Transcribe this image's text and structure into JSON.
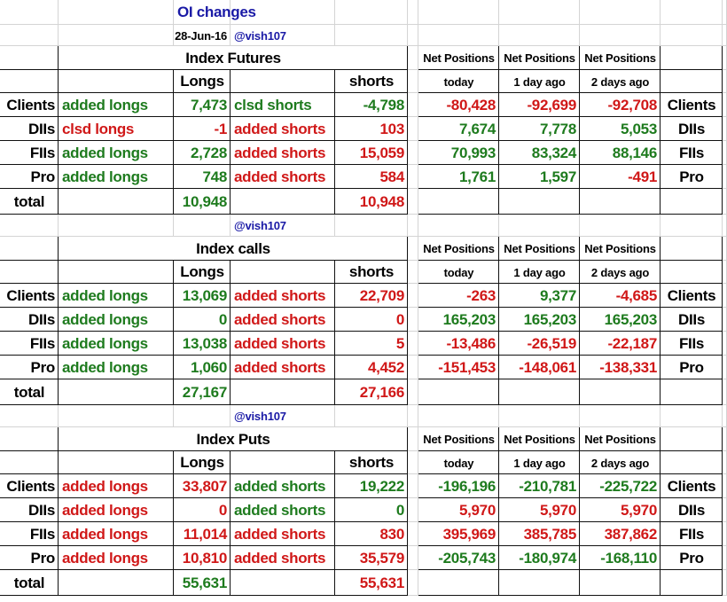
{
  "title": "OI changes",
  "date": "28-Jun-16",
  "colors": {
    "title": "#1a1aa6",
    "handle": "#1a1aa6",
    "long_total": "#1e7b1e",
    "short_total": "#d01818"
  },
  "sections": [
    {
      "handle": "@vish107",
      "title": "Index Futures",
      "longs_header": "Longs",
      "shorts_header": "shorts",
      "net_headers": [
        "Net Positions",
        "Net Positions",
        "Net Positions"
      ],
      "net_subheaders": [
        "today",
        "1 day ago",
        "2 days ago"
      ],
      "rows": [
        {
          "name": "Clients",
          "long_action": "added longs",
          "long": "7,473",
          "short_action": "clsd shorts",
          "short": "-4,798",
          "net": [
            "-80,428",
            "-92,699",
            "-92,708"
          ],
          "name_right": "Clients",
          "long_color": "#1e7b1e",
          "short_color": "#1e7b1e",
          "net_colors": [
            "#d01818",
            "#d01818",
            "#d01818"
          ]
        },
        {
          "name": "DIIs",
          "long_action": "clsd longs",
          "long": "-1",
          "short_action": "added shorts",
          "short": "103",
          "net": [
            "7,674",
            "7,778",
            "5,053"
          ],
          "name_right": "DIIs",
          "long_color": "#d01818",
          "short_color": "#d01818",
          "net_colors": [
            "#1e7b1e",
            "#1e7b1e",
            "#1e7b1e"
          ]
        },
        {
          "name": "FIIs",
          "long_action": "added longs",
          "long": "2,728",
          "short_action": "added shorts",
          "short": "15,059",
          "net": [
            "70,993",
            "83,324",
            "88,146"
          ],
          "name_right": "FIIs",
          "long_color": "#1e7b1e",
          "short_color": "#d01818",
          "net_colors": [
            "#1e7b1e",
            "#1e7b1e",
            "#1e7b1e"
          ]
        },
        {
          "name": "Pro",
          "long_action": "added longs",
          "long": "748",
          "short_action": "added shorts",
          "short": "584",
          "net": [
            "1,761",
            "1,597",
            "-491"
          ],
          "name_right": "Pro",
          "long_color": "#1e7b1e",
          "short_color": "#d01818",
          "net_colors": [
            "#1e7b1e",
            "#1e7b1e",
            "#d01818"
          ]
        }
      ],
      "total": {
        "label": "total",
        "longs": "10,948",
        "shorts": "10,948"
      }
    },
    {
      "handle": "@vish107",
      "title": "Index calls",
      "longs_header": "Longs",
      "shorts_header": "shorts",
      "net_headers": [
        "Net Positions",
        "Net Positions",
        "Net Positions"
      ],
      "net_subheaders": [
        "today",
        "1 day ago",
        "2 days ago"
      ],
      "rows": [
        {
          "name": "Clients",
          "long_action": "added longs",
          "long": "13,069",
          "short_action": "added shorts",
          "short": "22,709",
          "net": [
            "-263",
            "9,377",
            "-4,685"
          ],
          "name_right": "Clients",
          "long_color": "#1e7b1e",
          "short_color": "#d01818",
          "net_colors": [
            "#d01818",
            "#1e7b1e",
            "#d01818"
          ]
        },
        {
          "name": "DIIs",
          "long_action": "added longs",
          "long": "0",
          "short_action": "added shorts",
          "short": "0",
          "net": [
            "165,203",
            "165,203",
            "165,203"
          ],
          "name_right": "DIIs",
          "long_color": "#1e7b1e",
          "short_color": "#d01818",
          "net_colors": [
            "#1e7b1e",
            "#1e7b1e",
            "#1e7b1e"
          ]
        },
        {
          "name": "FIIs",
          "long_action": "added longs",
          "long": "13,038",
          "short_action": "added shorts",
          "short": "5",
          "net": [
            "-13,486",
            "-26,519",
            "-22,187"
          ],
          "name_right": "FIIs",
          "long_color": "#1e7b1e",
          "short_color": "#d01818",
          "net_colors": [
            "#d01818",
            "#d01818",
            "#d01818"
          ]
        },
        {
          "name": "Pro",
          "long_action": "added longs",
          "long": "1,060",
          "short_action": "added shorts",
          "short": "4,452",
          "net": [
            "-151,453",
            "-148,061",
            "-138,331"
          ],
          "name_right": "Pro",
          "long_color": "#1e7b1e",
          "short_color": "#d01818",
          "net_colors": [
            "#d01818",
            "#d01818",
            "#d01818"
          ]
        }
      ],
      "total": {
        "label": "total",
        "longs": "27,167",
        "shorts": "27,166"
      }
    },
    {
      "handle": "@vish107",
      "title": "Index Puts",
      "longs_header": "Longs",
      "shorts_header": "shorts",
      "net_headers": [
        "Net Positions",
        "Net Positions",
        "Net Positions"
      ],
      "net_subheaders": [
        "today",
        "1 day ago",
        "2 days ago"
      ],
      "rows": [
        {
          "name": "Clients",
          "long_action": "added longs",
          "long": "33,807",
          "short_action": "added shorts",
          "short": "19,222",
          "net": [
            "-196,196",
            "-210,781",
            "-225,722"
          ],
          "name_right": "Clients",
          "long_color": "#d01818",
          "short_color": "#1e7b1e",
          "net_colors": [
            "#1e7b1e",
            "#1e7b1e",
            "#1e7b1e"
          ]
        },
        {
          "name": "DIIs",
          "long_action": "added longs",
          "long": "0",
          "short_action": "added shorts",
          "short": "0",
          "net": [
            "5,970",
            "5,970",
            "5,970"
          ],
          "name_right": "DIIs",
          "long_color": "#d01818",
          "short_color": "#1e7b1e",
          "net_colors": [
            "#d01818",
            "#d01818",
            "#d01818"
          ]
        },
        {
          "name": "FIIs",
          "long_action": "added longs",
          "long": "11,014",
          "short_action": "added shorts",
          "short": "830",
          "net": [
            "395,969",
            "385,785",
            "387,862"
          ],
          "name_right": "FIIs",
          "long_color": "#d01818",
          "short_color": "#d01818",
          "net_colors": [
            "#d01818",
            "#d01818",
            "#d01818"
          ]
        },
        {
          "name": "Pro",
          "long_action": "added longs",
          "long": "10,810",
          "short_action": "added shorts",
          "short": "35,579",
          "net": [
            "-205,743",
            "-180,974",
            "-168,110"
          ],
          "name_right": "Pro",
          "long_color": "#d01818",
          "short_color": "#d01818",
          "net_colors": [
            "#1e7b1e",
            "#1e7b1e",
            "#1e7b1e"
          ]
        }
      ],
      "total": {
        "label": "total",
        "longs": "55,631",
        "shorts": "55,631"
      }
    }
  ]
}
